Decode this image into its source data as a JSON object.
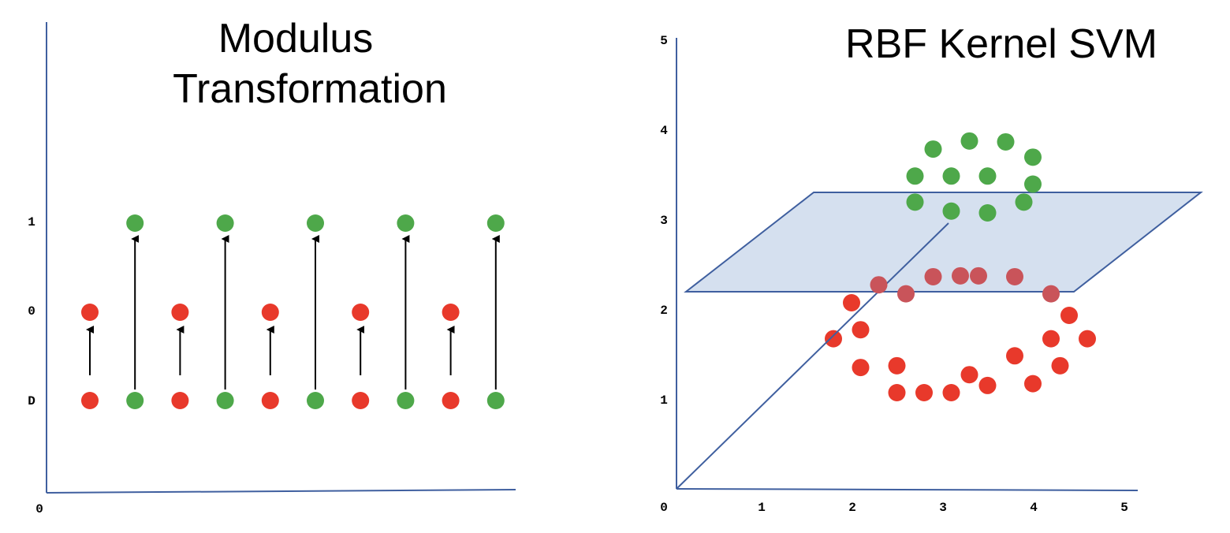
{
  "colors": {
    "axis": "#3f5f9f",
    "red": "#e8392b",
    "green": "#4ea84a",
    "faded_red": "#c9545a",
    "plane_fill": "#d5e0ef",
    "plane_stroke": "#3f5f9f",
    "arrow": "#000000"
  },
  "left_panel": {
    "title_line1": "Modulus",
    "title_line2": "Transformation",
    "y_ticks": [
      "1",
      "0",
      "D"
    ],
    "origin_label": "0",
    "points": [
      {
        "color": "red",
        "from": 0,
        "to": 0
      },
      {
        "color": "green",
        "from": 0,
        "to": 1
      },
      {
        "color": "red",
        "from": 0,
        "to": 0
      },
      {
        "color": "green",
        "from": 0,
        "to": 1
      },
      {
        "color": "red",
        "from": 0,
        "to": 0
      },
      {
        "color": "green",
        "from": 0,
        "to": 1
      },
      {
        "color": "red",
        "from": 0,
        "to": 0
      },
      {
        "color": "green",
        "from": 0,
        "to": 1
      },
      {
        "color": "red",
        "from": 0,
        "to": 0
      },
      {
        "color": "green",
        "from": 0,
        "to": 1
      }
    ]
  },
  "right_panel": {
    "title": "RBF Kernel SVM",
    "y_ticks": [
      "5",
      "4",
      "3",
      "2",
      "1"
    ],
    "x_ticks": [
      "0",
      "1",
      "2",
      "3",
      "4",
      "5"
    ],
    "green_points": [
      [
        3.3,
        3.87
      ],
      [
        3.7,
        3.86
      ],
      [
        2.9,
        3.78
      ],
      [
        4.0,
        3.69
      ],
      [
        2.7,
        3.48
      ],
      [
        3.1,
        3.48
      ],
      [
        3.5,
        3.48
      ],
      [
        4.0,
        3.39
      ],
      [
        2.7,
        3.19
      ],
      [
        3.9,
        3.19
      ],
      [
        3.1,
        3.09
      ],
      [
        3.5,
        3.07
      ]
    ],
    "faded_points": [
      [
        2.3,
        2.27
      ],
      [
        2.6,
        2.17
      ],
      [
        2.9,
        2.36
      ],
      [
        3.2,
        2.37
      ],
      [
        3.4,
        2.37
      ],
      [
        3.8,
        2.36
      ],
      [
        4.2,
        2.17
      ]
    ],
    "red_points": [
      [
        2.0,
        2.07
      ],
      [
        4.4,
        1.93
      ],
      [
        2.1,
        1.77
      ],
      [
        1.8,
        1.67
      ],
      [
        4.2,
        1.67
      ],
      [
        4.6,
        1.67
      ],
      [
        3.8,
        1.48
      ],
      [
        2.1,
        1.35
      ],
      [
        2.5,
        1.37
      ],
      [
        4.3,
        1.37
      ],
      [
        3.3,
        1.27
      ],
      [
        3.5,
        1.15
      ],
      [
        4.0,
        1.17
      ],
      [
        2.5,
        1.07
      ],
      [
        2.8,
        1.07
      ],
      [
        3.1,
        1.07
      ]
    ]
  }
}
